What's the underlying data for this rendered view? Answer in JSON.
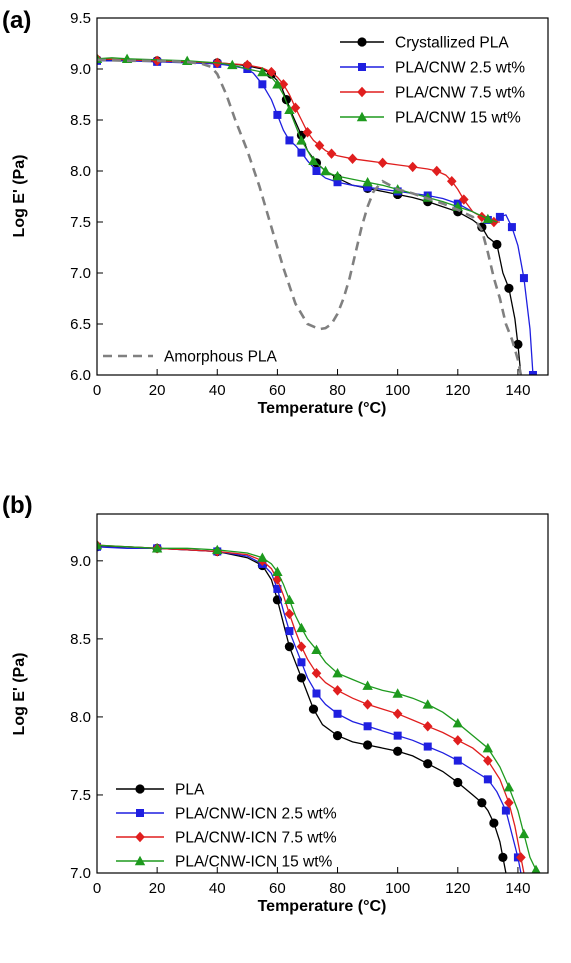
{
  "chart_data": [
    {
      "panel_label": "(a)",
      "type": "line",
      "xlabel": "Temperature (°C)",
      "ylabel": "Log E' (Pa)",
      "xlim": [
        0,
        150
      ],
      "ylim": [
        6.0,
        9.5
      ],
      "x_ticks": [
        0,
        20,
        40,
        60,
        80,
        100,
        120,
        140
      ],
      "y_ticks": [
        6.0,
        6.5,
        7.0,
        7.5,
        8.0,
        8.5,
        9.0,
        9.5
      ],
      "grid": false,
      "legend_position": "top-right",
      "series": [
        {
          "name": "Crystallized PLA",
          "color": "#000000",
          "marker": "circle",
          "line_style": "solid",
          "x": [
            0,
            10,
            20,
            30,
            40,
            45,
            50,
            55,
            58,
            61,
            63,
            65,
            68,
            70,
            73,
            76,
            80,
            85,
            90,
            95,
            100,
            105,
            110,
            115,
            120,
            125,
            128,
            130,
            133,
            135,
            137,
            139,
            140,
            141
          ],
          "y": [
            9.09,
            9.09,
            9.08,
            9.07,
            9.06,
            9.05,
            9.03,
            9.0,
            8.95,
            8.85,
            8.7,
            8.55,
            8.35,
            8.2,
            8.08,
            8.0,
            7.93,
            7.86,
            7.83,
            7.8,
            7.77,
            7.74,
            7.7,
            7.65,
            7.6,
            7.52,
            7.45,
            7.35,
            7.28,
            7.0,
            6.85,
            6.55,
            6.3,
            6.0
          ]
        },
        {
          "name": "PLA/CNW 2.5 wt%",
          "color": "#1f1fe0",
          "marker": "square",
          "line_style": "solid",
          "x": [
            0,
            10,
            20,
            30,
            40,
            45,
            50,
            52,
            55,
            58,
            60,
            62,
            64,
            66,
            68,
            70,
            73,
            76,
            80,
            85,
            90,
            95,
            100,
            105,
            110,
            115,
            120,
            125,
            130,
            132,
            134,
            136,
            138,
            140,
            142,
            144,
            145
          ],
          "y": [
            9.08,
            9.08,
            9.07,
            9.06,
            9.05,
            9.03,
            9.0,
            8.96,
            8.85,
            8.7,
            8.55,
            8.4,
            8.3,
            8.25,
            8.18,
            8.1,
            8.0,
            7.93,
            7.89,
            7.86,
            7.84,
            7.82,
            7.8,
            7.78,
            7.76,
            7.73,
            7.68,
            7.6,
            7.52,
            7.5,
            7.55,
            7.57,
            7.45,
            7.27,
            6.95,
            6.45,
            6.0
          ]
        },
        {
          "name": "PLA/CNW 7.5 wt%",
          "color": "#e01e1e",
          "marker": "diamond",
          "line_style": "solid",
          "x": [
            0,
            10,
            20,
            30,
            40,
            45,
            50,
            55,
            58,
            60,
            62,
            64,
            66,
            68,
            70,
            72,
            74,
            76,
            78,
            80,
            85,
            90,
            95,
            100,
            105,
            110,
            113,
            116,
            118,
            120,
            122,
            125,
            128,
            130,
            132,
            134
          ],
          "y": [
            9.1,
            9.09,
            9.08,
            9.07,
            9.06,
            9.05,
            9.04,
            9.01,
            8.97,
            8.92,
            8.85,
            8.75,
            8.62,
            8.5,
            8.38,
            8.3,
            8.25,
            8.2,
            8.17,
            8.15,
            8.12,
            8.1,
            8.08,
            8.06,
            8.04,
            8.02,
            8.0,
            7.96,
            7.9,
            7.82,
            7.72,
            7.6,
            7.55,
            7.52,
            7.5,
            7.5
          ]
        },
        {
          "name": "PLA/CNW 15 wt%",
          "color": "#1e9a1e",
          "marker": "triangle",
          "line_style": "solid",
          "x": [
            0,
            5,
            10,
            20,
            30,
            40,
            45,
            50,
            55,
            58,
            60,
            62,
            64,
            66,
            68,
            70,
            72,
            74,
            76,
            78,
            80,
            85,
            90,
            95,
            100,
            105,
            110,
            115,
            120,
            125,
            130,
            133
          ],
          "y": [
            9.1,
            9.11,
            9.1,
            9.09,
            9.08,
            9.06,
            9.04,
            9.0,
            8.97,
            8.92,
            8.85,
            8.75,
            8.6,
            8.45,
            8.3,
            8.2,
            8.1,
            8.05,
            8.0,
            7.97,
            7.95,
            7.92,
            7.89,
            7.86,
            7.82,
            7.78,
            7.74,
            7.7,
            7.65,
            7.6,
            7.53,
            7.5
          ]
        },
        {
          "name": "Amorphous PLA",
          "color": "#808080",
          "marker": "none",
          "line_style": "dashed",
          "x": [
            0,
            10,
            20,
            30,
            35,
            38,
            40,
            43,
            46,
            50,
            54,
            58,
            62,
            66,
            70,
            74,
            76,
            78,
            80,
            82,
            84,
            86,
            88,
            90,
            92,
            95,
            100,
            105,
            110,
            115,
            120,
            125,
            128,
            130,
            132,
            134,
            136,
            138,
            140,
            141
          ],
          "y": [
            9.09,
            9.08,
            9.08,
            9.07,
            9.05,
            9.02,
            8.95,
            8.75,
            8.5,
            8.2,
            7.85,
            7.45,
            7.05,
            6.7,
            6.5,
            6.45,
            6.46,
            6.5,
            6.6,
            6.75,
            6.95,
            7.2,
            7.45,
            7.65,
            7.8,
            7.9,
            7.82,
            7.78,
            7.73,
            7.68,
            7.62,
            7.55,
            7.42,
            7.2,
            6.95,
            6.75,
            6.5,
            6.35,
            6.15,
            6.0
          ]
        }
      ]
    },
    {
      "panel_label": "(b)",
      "type": "line",
      "xlabel": "Temperature (°C)",
      "ylabel": "Log E' (Pa)",
      "xlim": [
        0,
        150
      ],
      "ylim": [
        7.0,
        9.3
      ],
      "x_ticks": [
        0,
        20,
        40,
        60,
        80,
        100,
        120,
        140
      ],
      "y_ticks": [
        7.0,
        7.5,
        8.0,
        8.5,
        9.0
      ],
      "grid": false,
      "legend_position": "bottom-left",
      "series": [
        {
          "name": "PLA",
          "color": "#000000",
          "marker": "circle",
          "line_style": "solid",
          "x": [
            0,
            10,
            20,
            30,
            40,
            50,
            55,
            58,
            60,
            62,
            64,
            66,
            68,
            70,
            72,
            75,
            80,
            85,
            90,
            95,
            100,
            105,
            110,
            115,
            120,
            125,
            128,
            130,
            132,
            134,
            135,
            136
          ],
          "y": [
            9.09,
            9.09,
            9.08,
            9.07,
            9.06,
            9.02,
            8.97,
            8.88,
            8.75,
            8.6,
            8.45,
            8.35,
            8.25,
            8.15,
            8.05,
            7.95,
            7.88,
            7.84,
            7.82,
            7.8,
            7.78,
            7.75,
            7.7,
            7.65,
            7.58,
            7.5,
            7.45,
            7.4,
            7.32,
            7.2,
            7.1,
            7.0
          ]
        },
        {
          "name": "PLA/CNW-ICN 2.5 wt%",
          "color": "#1f1fe0",
          "marker": "square",
          "line_style": "solid",
          "x": [
            0,
            10,
            20,
            30,
            40,
            50,
            55,
            58,
            60,
            62,
            64,
            66,
            68,
            70,
            73,
            76,
            80,
            85,
            90,
            95,
            100,
            105,
            110,
            115,
            120,
            125,
            130,
            133,
            136,
            138,
            140,
            141
          ],
          "y": [
            9.09,
            9.08,
            9.08,
            9.07,
            9.06,
            9.03,
            8.98,
            8.92,
            8.82,
            8.68,
            8.55,
            8.45,
            8.35,
            8.25,
            8.15,
            8.08,
            8.02,
            7.97,
            7.94,
            7.91,
            7.88,
            7.85,
            7.81,
            7.77,
            7.72,
            7.66,
            7.6,
            7.52,
            7.4,
            7.25,
            7.1,
            7.0
          ]
        },
        {
          "name": "PLA/CNW-ICN 7.5 wt%",
          "color": "#e01e1e",
          "marker": "diamond",
          "line_style": "solid",
          "x": [
            0,
            10,
            20,
            30,
            40,
            50,
            55,
            58,
            60,
            62,
            64,
            66,
            68,
            70,
            73,
            76,
            80,
            85,
            90,
            95,
            100,
            105,
            110,
            115,
            120,
            125,
            130,
            134,
            137,
            139,
            141,
            142
          ],
          "y": [
            9.1,
            9.09,
            9.08,
            9.07,
            9.06,
            9.04,
            9.0,
            8.95,
            8.88,
            8.78,
            8.66,
            8.55,
            8.45,
            8.37,
            8.28,
            8.22,
            8.17,
            8.12,
            8.08,
            8.05,
            8.02,
            7.98,
            7.94,
            7.9,
            7.85,
            7.8,
            7.72,
            7.6,
            7.45,
            7.3,
            7.1,
            7.0
          ]
        },
        {
          "name": "PLA/CNW-ICN 15 wt%",
          "color": "#1e9a1e",
          "marker": "triangle",
          "line_style": "solid",
          "x": [
            0,
            10,
            20,
            30,
            40,
            50,
            55,
            58,
            60,
            62,
            64,
            66,
            68,
            70,
            73,
            76,
            80,
            85,
            90,
            95,
            100,
            105,
            110,
            115,
            120,
            125,
            130,
            134,
            137,
            140,
            142,
            144,
            146
          ],
          "y": [
            9.1,
            9.09,
            9.08,
            9.08,
            9.07,
            9.05,
            9.02,
            8.98,
            8.93,
            8.85,
            8.75,
            8.65,
            8.57,
            8.5,
            8.43,
            8.35,
            8.28,
            8.24,
            8.2,
            8.17,
            8.15,
            8.12,
            8.08,
            8.03,
            7.96,
            7.88,
            7.8,
            7.68,
            7.55,
            7.4,
            7.25,
            7.1,
            7.02
          ]
        }
      ]
    }
  ]
}
